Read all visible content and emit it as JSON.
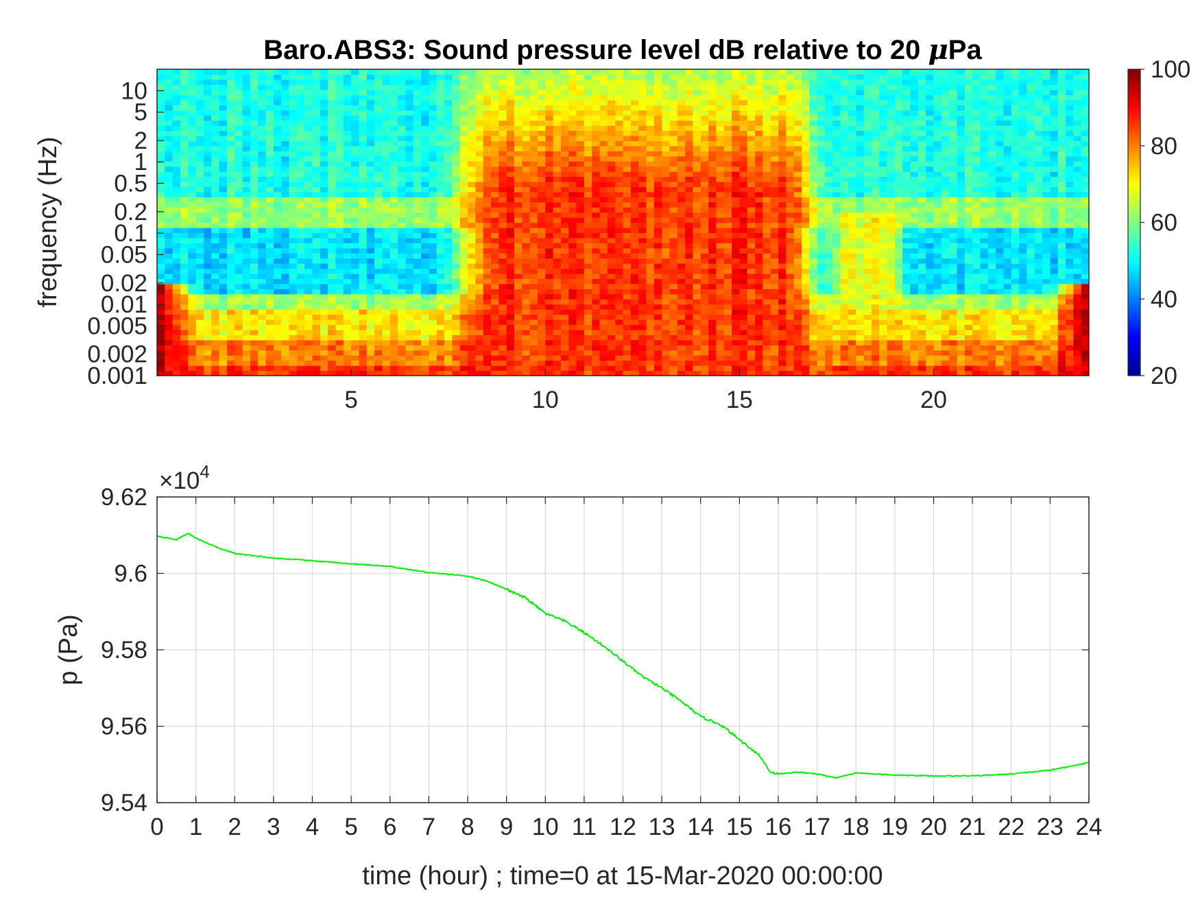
{
  "chart_data": [
    {
      "type": "heatmap",
      "title_prefix": "Baro.ABS3: Sound pressure level dB relative to 20 ",
      "title_mu": "μ",
      "title_suffix": "Pa",
      "xlabel": "",
      "ylabel": "frequency (Hz)",
      "xlim": [
        0,
        24
      ],
      "ylim": [
        0.001,
        20
      ],
      "yscale": "log",
      "x_tick_values": [
        5,
        10,
        15,
        20
      ],
      "x_tick_labels": [
        "5",
        "10",
        "15",
        "20"
      ],
      "y_tick_values": [
        0.001,
        0.002,
        0.005,
        0.01,
        0.02,
        0.05,
        0.1,
        0.2,
        0.5,
        1,
        2,
        5,
        10
      ],
      "y_tick_labels": [
        "0.001",
        "0.002",
        "0.005",
        "0.01",
        "0.02",
        "0.05",
        "0.1",
        "0.2",
        "0.5",
        "1",
        "2",
        "5",
        "10"
      ],
      "colormap": "jet",
      "clim": [
        20,
        100
      ],
      "colorbar_tick_values": [
        20,
        40,
        60,
        80,
        100
      ],
      "colorbar_tick_labels": [
        "20",
        "40",
        "60",
        "80",
        "100"
      ],
      "activity_window_hours": [
        8,
        17
      ],
      "grid": false
    },
    {
      "type": "line",
      "xlabel": "time (hour) ; time=0 at 15-Mar-2020 00:00:00",
      "ylabel": "p (Pa)",
      "exponent_label_prefix": "×10",
      "exponent_label_power": "4",
      "xlim": [
        0,
        24
      ],
      "ylim": [
        95400,
        96200
      ],
      "x_tick_values": [
        0,
        1,
        2,
        3,
        4,
        5,
        6,
        7,
        8,
        9,
        10,
        11,
        12,
        13,
        14,
        15,
        16,
        17,
        18,
        19,
        20,
        21,
        22,
        23,
        24
      ],
      "x_tick_labels": [
        "0",
        "1",
        "2",
        "3",
        "4",
        "5",
        "6",
        "7",
        "8",
        "9",
        "10",
        "11",
        "12",
        "13",
        "14",
        "15",
        "16",
        "17",
        "18",
        "19",
        "20",
        "21",
        "22",
        "23",
        "24"
      ],
      "y_tick_values": [
        95400,
        95600,
        95800,
        96000,
        96200
      ],
      "y_tick_labels": [
        "9.54",
        "9.56",
        "9.58",
        "9.6",
        "9.62"
      ],
      "grid": true,
      "series": [
        {
          "color": "#00ee00",
          "x": [
            0,
            0.5,
            0.8,
            1,
            1.5,
            2,
            3,
            4,
            5,
            6,
            7,
            8,
            8.5,
            9,
            9.5,
            10,
            10.5,
            11,
            11.5,
            12,
            12.5,
            13,
            13.5,
            14,
            14.5,
            15,
            15.5,
            15.8,
            16,
            16.5,
            17,
            17.5,
            18,
            19,
            20,
            21,
            22,
            23,
            24
          ],
          "y": [
            96098,
            96088,
            96105,
            96092,
            96070,
            96052,
            96040,
            96033,
            96025,
            96018,
            96002,
            95993,
            95980,
            95958,
            95935,
            95895,
            95875,
            95845,
            95810,
            95770,
            95730,
            95700,
            95665,
            95625,
            95605,
            95565,
            95525,
            95480,
            95475,
            95480,
            95475,
            95465,
            95478,
            95472,
            95470,
            95470,
            95475,
            95485,
            95505
          ]
        }
      ]
    }
  ]
}
